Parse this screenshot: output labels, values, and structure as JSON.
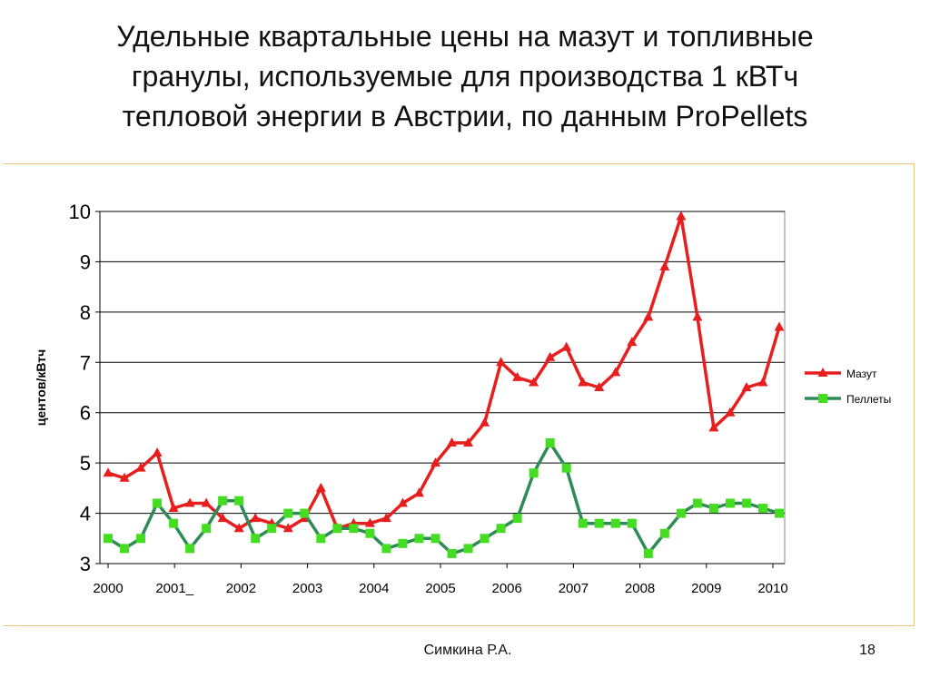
{
  "slide": {
    "title_lines": [
      "Удельные квартальные цены на мазут и топливные",
      "гранулы, используемые для производства 1 кВТч",
      "тепловой энергии в Австрии, по данным ProPellets"
    ],
    "author": "Симкина Р.А.",
    "page_number": "18"
  },
  "chart_data": {
    "type": "line",
    "title": "",
    "xlabel": "",
    "ylabel": "центов/кВтч",
    "ylim": [
      3,
      10
    ],
    "yticks": [
      "10",
      "9",
      "8",
      "7",
      "6",
      "5",
      "4",
      "3"
    ],
    "xtick_labels": [
      "2000",
      "2001_",
      "2002",
      "2003",
      "2004",
      "2005",
      "2006",
      "2007",
      "2008",
      "2009",
      "2010"
    ],
    "grid": "horizontal",
    "legend_position": "right",
    "series": [
      {
        "name": "Мазут",
        "color": "#e81e1e",
        "marker": "triangle",
        "values": [
          4.8,
          4.7,
          4.9,
          5.2,
          4.1,
          4.2,
          4.2,
          3.9,
          3.7,
          3.9,
          3.8,
          3.7,
          3.9,
          4.5,
          3.7,
          3.8,
          3.8,
          3.9,
          4.2,
          4.4,
          5.0,
          5.4,
          5.4,
          5.8,
          7.0,
          6.7,
          6.6,
          7.1,
          7.3,
          6.6,
          6.5,
          6.8,
          7.4,
          7.9,
          8.9,
          9.9,
          7.9,
          5.7,
          6.0,
          6.5,
          6.6,
          7.7
        ]
      },
      {
        "name": "Пеллеты",
        "color": "#2e8b57",
        "marker_color": "#44dd22",
        "marker": "square",
        "values": [
          3.5,
          3.3,
          3.5,
          4.2,
          3.8,
          3.3,
          3.7,
          4.25,
          4.25,
          3.5,
          3.7,
          4.0,
          4.0,
          3.5,
          3.7,
          3.7,
          3.6,
          3.3,
          3.4,
          3.5,
          3.5,
          3.2,
          3.3,
          3.5,
          3.7,
          3.9,
          4.8,
          5.4,
          4.9,
          3.8,
          3.8,
          3.8,
          3.8,
          3.2,
          3.6,
          4.0,
          4.2,
          4.1,
          4.2,
          4.2,
          4.1,
          4.0
        ]
      }
    ]
  }
}
